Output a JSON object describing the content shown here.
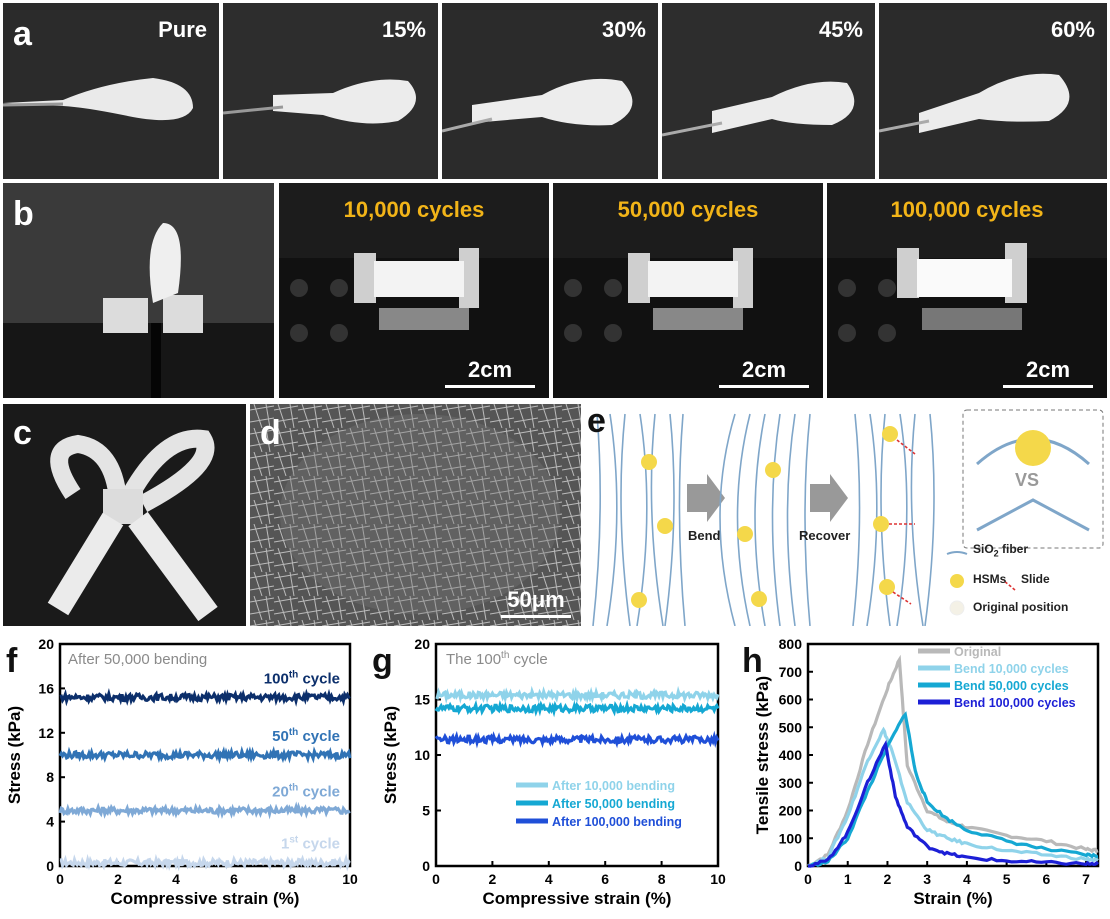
{
  "panel_a": {
    "letter": "a",
    "labels": [
      "Pure",
      "15%",
      "30%",
      "45%",
      "60%"
    ]
  },
  "panel_b": {
    "letter": "b",
    "cycles": [
      "10,000 cycles",
      "50,000 cycles",
      "100,000 cycles"
    ],
    "scale_bar": "2cm"
  },
  "panel_c": {
    "letter": "c"
  },
  "panel_d": {
    "letter": "d",
    "scale_bar": "50μm"
  },
  "panel_e": {
    "letter": "e",
    "step1": "Bend",
    "step2": "Recover",
    "vs": "VS",
    "legend": {
      "fiber": "SiO",
      "fiber_sub": "2",
      "fiber_tail": " fiber",
      "hsm": "HSMs",
      "slide": "Slide",
      "original": "Original position"
    }
  },
  "chart_data": [
    {
      "panel": "f",
      "type": "line",
      "annotation": "After 50,000 bending",
      "xlabel": "Compressive strain (%)",
      "ylabel": "Stress (kPa)",
      "xlim": [
        0,
        10
      ],
      "ylim": [
        0,
        20
      ],
      "xticks": [
        0,
        2,
        4,
        6,
        8,
        10
      ],
      "yticks": [
        0,
        4,
        8,
        12,
        16,
        20
      ],
      "series": [
        {
          "name": "1st cycle",
          "label_main": "1",
          "label_sup": "st",
          "label_tail": " cycle",
          "color": "#c6d7ec",
          "level": 0.3
        },
        {
          "name": "20th cycle",
          "label_main": "20",
          "label_sup": "th",
          "label_tail": " cycle",
          "color": "#7fa9d6",
          "level": 5.0
        },
        {
          "name": "50th cycle",
          "label_main": "50",
          "label_sup": "th",
          "label_tail": " cycle",
          "color": "#3173b5",
          "level": 10.0
        },
        {
          "name": "100th cycle",
          "label_main": "100",
          "label_sup": "th",
          "label_tail": " cycle",
          "color": "#0c2f6b",
          "level": 15.2
        }
      ]
    },
    {
      "panel": "g",
      "type": "line",
      "annotation_main": "The 100",
      "annotation_sup": "th",
      "annotation_tail": " cycle",
      "xlabel": "Compressive strain (%)",
      "ylabel": "Stress (kPa)",
      "xlim": [
        0,
        10
      ],
      "ylim": [
        0,
        20
      ],
      "xticks": [
        0,
        2,
        4,
        6,
        8,
        10
      ],
      "yticks": [
        0,
        5,
        10,
        15,
        20
      ],
      "series": [
        {
          "name": "After 10,000 bending",
          "color": "#8fd3ea",
          "level": 15.4
        },
        {
          "name": "After 50,000 bending",
          "color": "#15a8d3",
          "level": 14.2
        },
        {
          "name": "After 100,000 bending",
          "color": "#1f4fd8",
          "level": 11.4
        }
      ]
    },
    {
      "panel": "h",
      "type": "line",
      "xlabel": "Strain (%)",
      "ylabel": "Tensile stress (kPa)",
      "xlim": [
        0,
        7.3
      ],
      "ylim": [
        0,
        800
      ],
      "xticks": [
        0,
        1,
        2,
        3,
        4,
        5,
        6,
        7
      ],
      "yticks": [
        0,
        100,
        200,
        300,
        400,
        500,
        600,
        700,
        800
      ],
      "series": [
        {
          "name": "Original",
          "color": "#b9b9b9",
          "x": [
            0,
            0.5,
            1.0,
            1.5,
            2.0,
            2.3,
            2.5,
            3.0,
            3.5,
            4.0,
            5.0,
            6.0,
            7.0,
            7.3
          ],
          "y": [
            0,
            40,
            200,
            440,
            640,
            745,
            360,
            200,
            160,
            140,
            110,
            90,
            60,
            55
          ]
        },
        {
          "name": "Bend 10,000 cycles",
          "color": "#8fd3ea",
          "x": [
            0,
            0.5,
            1.0,
            1.5,
            1.9,
            2.1,
            2.5,
            3.0,
            3.5,
            4.0,
            5.0,
            6.0,
            7.0,
            7.3
          ],
          "y": [
            0,
            30,
            180,
            380,
            490,
            420,
            230,
            130,
            100,
            80,
            55,
            40,
            25,
            20
          ]
        },
        {
          "name": "Bend 50,000 cycles",
          "color": "#15a8d3",
          "x": [
            0,
            0.5,
            1.0,
            1.5,
            2.0,
            2.45,
            2.7,
            3.0,
            3.5,
            4.0,
            5.0,
            6.0,
            7.0,
            7.3
          ],
          "y": [
            0,
            15,
            100,
            270,
            430,
            550,
            340,
            230,
            170,
            130,
            90,
            60,
            40,
            35
          ]
        },
        {
          "name": "Bend 100,000 cycles",
          "color": "#1c1fd6",
          "x": [
            0,
            0.5,
            1.0,
            1.5,
            1.95,
            2.2,
            2.5,
            3.0,
            3.5,
            4.0,
            5.0,
            6.0,
            7.0,
            7.3
          ],
          "y": [
            0,
            20,
            120,
            300,
            440,
            250,
            140,
            70,
            45,
            30,
            18,
            12,
            8,
            6
          ]
        }
      ]
    }
  ]
}
